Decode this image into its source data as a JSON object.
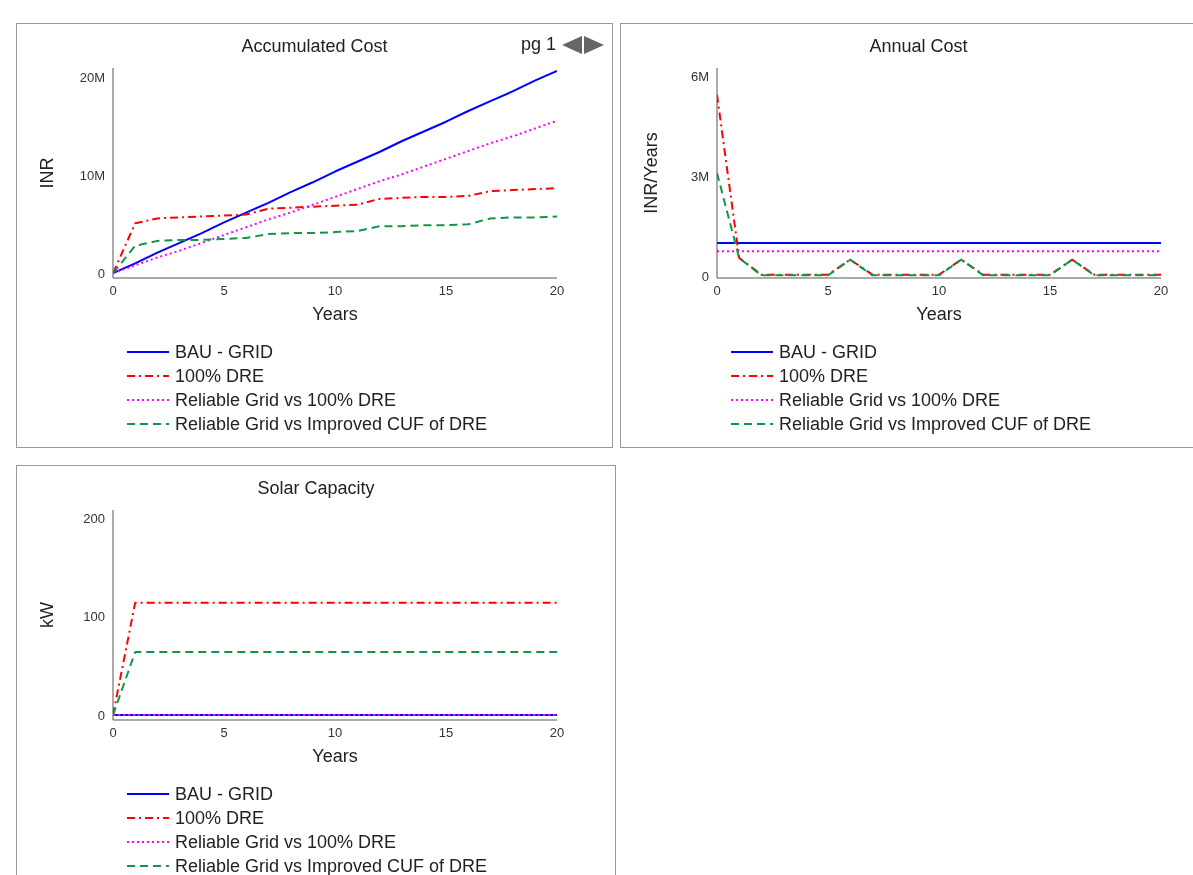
{
  "chart_data": [
    {
      "type": "line",
      "title": "Accumulated Cost",
      "xlabel": "Years",
      "ylabel": "INR",
      "annotations": [
        "pg 1"
      ],
      "x": [
        0,
        1,
        2,
        3,
        4,
        5,
        6,
        7,
        8,
        9,
        10,
        11,
        12,
        13,
        14,
        15,
        16,
        17,
        18,
        19,
        20
      ],
      "xlim": [
        0,
        20
      ],
      "xticks": [
        0,
        5,
        10,
        15,
        20
      ],
      "ylim": [
        -500000,
        21000000
      ],
      "yticks": [
        {
          "value": 0,
          "label": "0"
        },
        {
          "value": 10000000,
          "label": "10M"
        },
        {
          "value": 20000000,
          "label": "20M"
        }
      ],
      "grid": false,
      "legend": "bottom",
      "marker": "none",
      "series": [
        {
          "name": "BAU - GRID",
          "color": "#0000ff",
          "line_style": "solid",
          "values": [
            0,
            1000000,
            2100000,
            3100000,
            4100000,
            5200000,
            6200000,
            7200000,
            8300000,
            9300000,
            10400000,
            11400000,
            12400000,
            13500000,
            14500000,
            15500000,
            16600000,
            17600000,
            18600000,
            19700000,
            20700000
          ]
        },
        {
          "name": "100% DRE",
          "color": "#ff0000",
          "line_style": "dashdot",
          "values": [
            0,
            5100000,
            5600000,
            5700000,
            5800000,
            5900000,
            6000000,
            6600000,
            6700000,
            6800000,
            6900000,
            7000000,
            7600000,
            7700000,
            7800000,
            7800000,
            7900000,
            8400000,
            8500000,
            8600000,
            8700000
          ]
        },
        {
          "name": "Reliable Grid vs 100% DRE",
          "color": "#ff00ff",
          "line_style": "dotted",
          "values": [
            0,
            800000,
            1600000,
            2300000,
            3100000,
            3900000,
            4700000,
            5500000,
            6200000,
            7000000,
            7800000,
            8600000,
            9400000,
            10100000,
            10900000,
            11700000,
            12500000,
            13300000,
            14000000,
            14800000,
            15600000
          ]
        },
        {
          "name": "Reliable Grid vs Improved CUF of DRE",
          "color": "#109648",
          "line_style": "dashed",
          "values": [
            0,
            2800000,
            3300000,
            3400000,
            3400000,
            3500000,
            3600000,
            4000000,
            4100000,
            4100000,
            4200000,
            4300000,
            4800000,
            4800000,
            4900000,
            4900000,
            5000000,
            5600000,
            5700000,
            5700000,
            5800000
          ]
        }
      ]
    },
    {
      "type": "line",
      "title": "Annual Cost",
      "xlabel": "Years",
      "ylabel": "INR/Years",
      "x": [
        0,
        1,
        2,
        3,
        4,
        5,
        6,
        7,
        8,
        9,
        10,
        11,
        12,
        13,
        14,
        15,
        16,
        17,
        18,
        19,
        20
      ],
      "xlim": [
        0,
        20
      ],
      "xticks": [
        0,
        5,
        10,
        15,
        20
      ],
      "ylim": [
        -50000,
        6250000
      ],
      "yticks": [
        {
          "value": 0,
          "label": "0"
        },
        {
          "value": 3000000,
          "label": "3M"
        },
        {
          "value": 6000000,
          "label": "6M"
        }
      ],
      "grid": false,
      "legend": "bottom",
      "marker": "none",
      "series": [
        {
          "name": "BAU - GRID",
          "color": "#0000ff",
          "line_style": "solid",
          "values": [
            1000000,
            1000000,
            1000000,
            1000000,
            1000000,
            1000000,
            1000000,
            1000000,
            1000000,
            1000000,
            1000000,
            1000000,
            1000000,
            1000000,
            1000000,
            1000000,
            1000000,
            1000000,
            1000000,
            1000000,
            1000000
          ]
        },
        {
          "name": "100% DRE",
          "color": "#ff0000",
          "line_style": "dashdot",
          "values": [
            5450000,
            550000,
            50000,
            50000,
            50000,
            50000,
            500000,
            50000,
            50000,
            50000,
            50000,
            500000,
            50000,
            50000,
            50000,
            50000,
            500000,
            50000,
            50000,
            50000,
            50000
          ]
        },
        {
          "name": "Reliable Grid vs 100% DRE",
          "color": "#ff00ff",
          "line_style": "dotted",
          "values": [
            750000,
            750000,
            750000,
            750000,
            750000,
            750000,
            750000,
            750000,
            750000,
            750000,
            750000,
            750000,
            750000,
            750000,
            750000,
            750000,
            750000,
            750000,
            750000,
            750000,
            750000
          ]
        },
        {
          "name": "Reliable Grid vs Improved CUF of DRE",
          "color": "#109648",
          "line_style": "dashed",
          "values": [
            3100000,
            550000,
            30000,
            30000,
            30000,
            30000,
            500000,
            30000,
            30000,
            30000,
            30000,
            500000,
            30000,
            30000,
            30000,
            30000,
            500000,
            30000,
            30000,
            30000,
            30000
          ]
        }
      ]
    },
    {
      "type": "line",
      "title": "Solar Capacity",
      "xlabel": "Years",
      "ylabel": "kW",
      "x": [
        0,
        1,
        2,
        3,
        4,
        5,
        6,
        7,
        8,
        9,
        10,
        11,
        12,
        13,
        14,
        15,
        16,
        17,
        18,
        19,
        20
      ],
      "xlim": [
        0,
        20
      ],
      "xticks": [
        0,
        5,
        10,
        15,
        20
      ],
      "ylim": [
        -5,
        208
      ],
      "yticks": [
        0,
        100,
        200
      ],
      "grid": false,
      "legend": "bottom",
      "marker": "none",
      "series": [
        {
          "name": "BAU - GRID",
          "color": "#0000ff",
          "line_style": "solid",
          "values": [
            0,
            0,
            0,
            0,
            0,
            0,
            0,
            0,
            0,
            0,
            0,
            0,
            0,
            0,
            0,
            0,
            0,
            0,
            0,
            0,
            0
          ]
        },
        {
          "name": "100% DRE",
          "color": "#ff0000",
          "line_style": "dashdot",
          "values": [
            0,
            114,
            114,
            114,
            114,
            114,
            114,
            114,
            114,
            114,
            114,
            114,
            114,
            114,
            114,
            114,
            114,
            114,
            114,
            114,
            114
          ]
        },
        {
          "name": "Reliable Grid vs 100% DRE",
          "color": "#ff00ff",
          "line_style": "dotted",
          "values": [
            0,
            0,
            0,
            0,
            0,
            0,
            0,
            0,
            0,
            0,
            0,
            0,
            0,
            0,
            0,
            0,
            0,
            0,
            0,
            0,
            0
          ]
        },
        {
          "name": "Reliable Grid vs Improved CUF of DRE",
          "color": "#109648",
          "line_style": "dashed",
          "values": [
            0,
            64,
            64,
            64,
            64,
            64,
            64,
            64,
            64,
            64,
            64,
            64,
            64,
            64,
            64,
            64,
            64,
            64,
            64,
            64,
            64
          ]
        }
      ]
    }
  ]
}
